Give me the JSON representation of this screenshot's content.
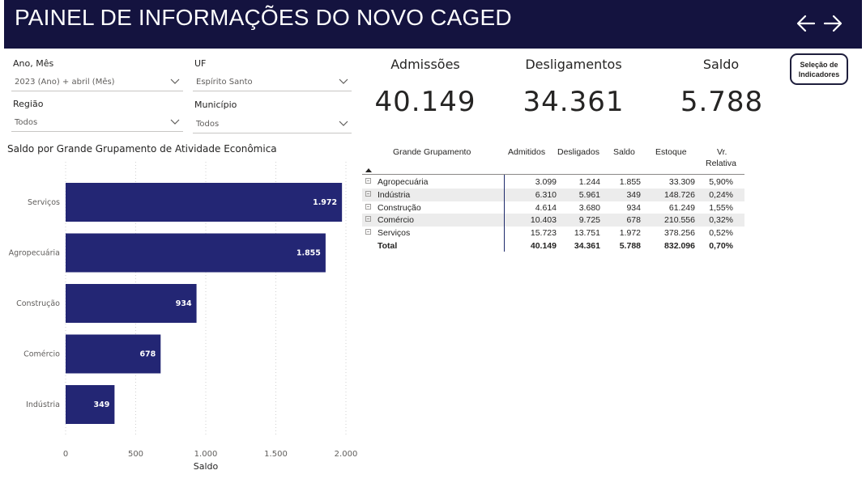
{
  "header": {
    "title": "PAINEL DE INFORMAÇÕES DO NOVO CAGED",
    "background": "#14133f",
    "back_icon": "arrow-left-icon",
    "forward_icon": "arrow-right-icon"
  },
  "filters": {
    "ano_mes": {
      "label": "Ano, Mês",
      "value": "2023 (Ano) + abril (Mês)"
    },
    "uf": {
      "label": "UF",
      "value": "Espírito Santo"
    },
    "regiao": {
      "label": "Região",
      "value": "Todos"
    },
    "municipio": {
      "label": "Município",
      "value": "Todos"
    }
  },
  "kpis": {
    "admissoes": {
      "label": "Admissões",
      "value": "40.149"
    },
    "desligamentos": {
      "label": "Desligamentos",
      "value": "34.361"
    },
    "saldo": {
      "label": "Saldo",
      "value": "5.788"
    }
  },
  "selection_button": {
    "line1": "Seleção de",
    "line2": "Indicadores"
  },
  "chart_title": "Saldo por Grande Grupamento de Atividade Econômica",
  "chart_data": {
    "type": "bar",
    "orientation": "horizontal",
    "categories": [
      "Serviços",
      "Agropecuária",
      "Construção",
      "Comércio",
      "Indústria"
    ],
    "values": [
      1972,
      1855,
      934,
      678,
      349
    ],
    "value_labels": [
      "1.972",
      "1.855",
      "934",
      "678",
      "349"
    ],
    "xlabel": "Saldo",
    "ylabel": "",
    "xlim": [
      0,
      2000
    ],
    "x_ticks": [
      0,
      500,
      1000,
      1500,
      2000
    ],
    "x_tick_labels": [
      "0",
      "500",
      "1.000",
      "1.500",
      "2.000"
    ],
    "grid": true,
    "bar_color": "#232674"
  },
  "table": {
    "headers": {
      "grupo": "Grande Grupamento",
      "admitidos": "Admitidos",
      "desligados": "Desligados",
      "saldo": "Saldo",
      "estoque": "Estoque",
      "vr1": "Vr.",
      "vr2": "Relativa"
    },
    "sort_icon": "sort-ascending-icon",
    "rows": [
      {
        "grupo": "Agropecuária",
        "admitidos": "3.099",
        "desligados": "1.244",
        "saldo": "1.855",
        "estoque": "33.309",
        "vr": "5,90%"
      },
      {
        "grupo": "Indústria",
        "admitidos": "6.310",
        "desligados": "5.961",
        "saldo": "349",
        "estoque": "148.726",
        "vr": "0,24%"
      },
      {
        "grupo": "Construção",
        "admitidos": "4.614",
        "desligados": "3.680",
        "saldo": "934",
        "estoque": "61.249",
        "vr": "1,55%"
      },
      {
        "grupo": "Comércio",
        "admitidos": "10.403",
        "desligados": "9.725",
        "saldo": "678",
        "estoque": "210.556",
        "vr": "0,32%"
      },
      {
        "grupo": "Serviços",
        "admitidos": "15.723",
        "desligados": "13.751",
        "saldo": "1.972",
        "estoque": "378.256",
        "vr": "0,52%"
      }
    ],
    "total": {
      "grupo": "Total",
      "admitidos": "40.149",
      "desligados": "34.361",
      "saldo": "5.788",
      "estoque": "832.096",
      "vr": "0,70%"
    },
    "stripe_color": "#ececec",
    "divider_color": "#1e2a6b"
  }
}
